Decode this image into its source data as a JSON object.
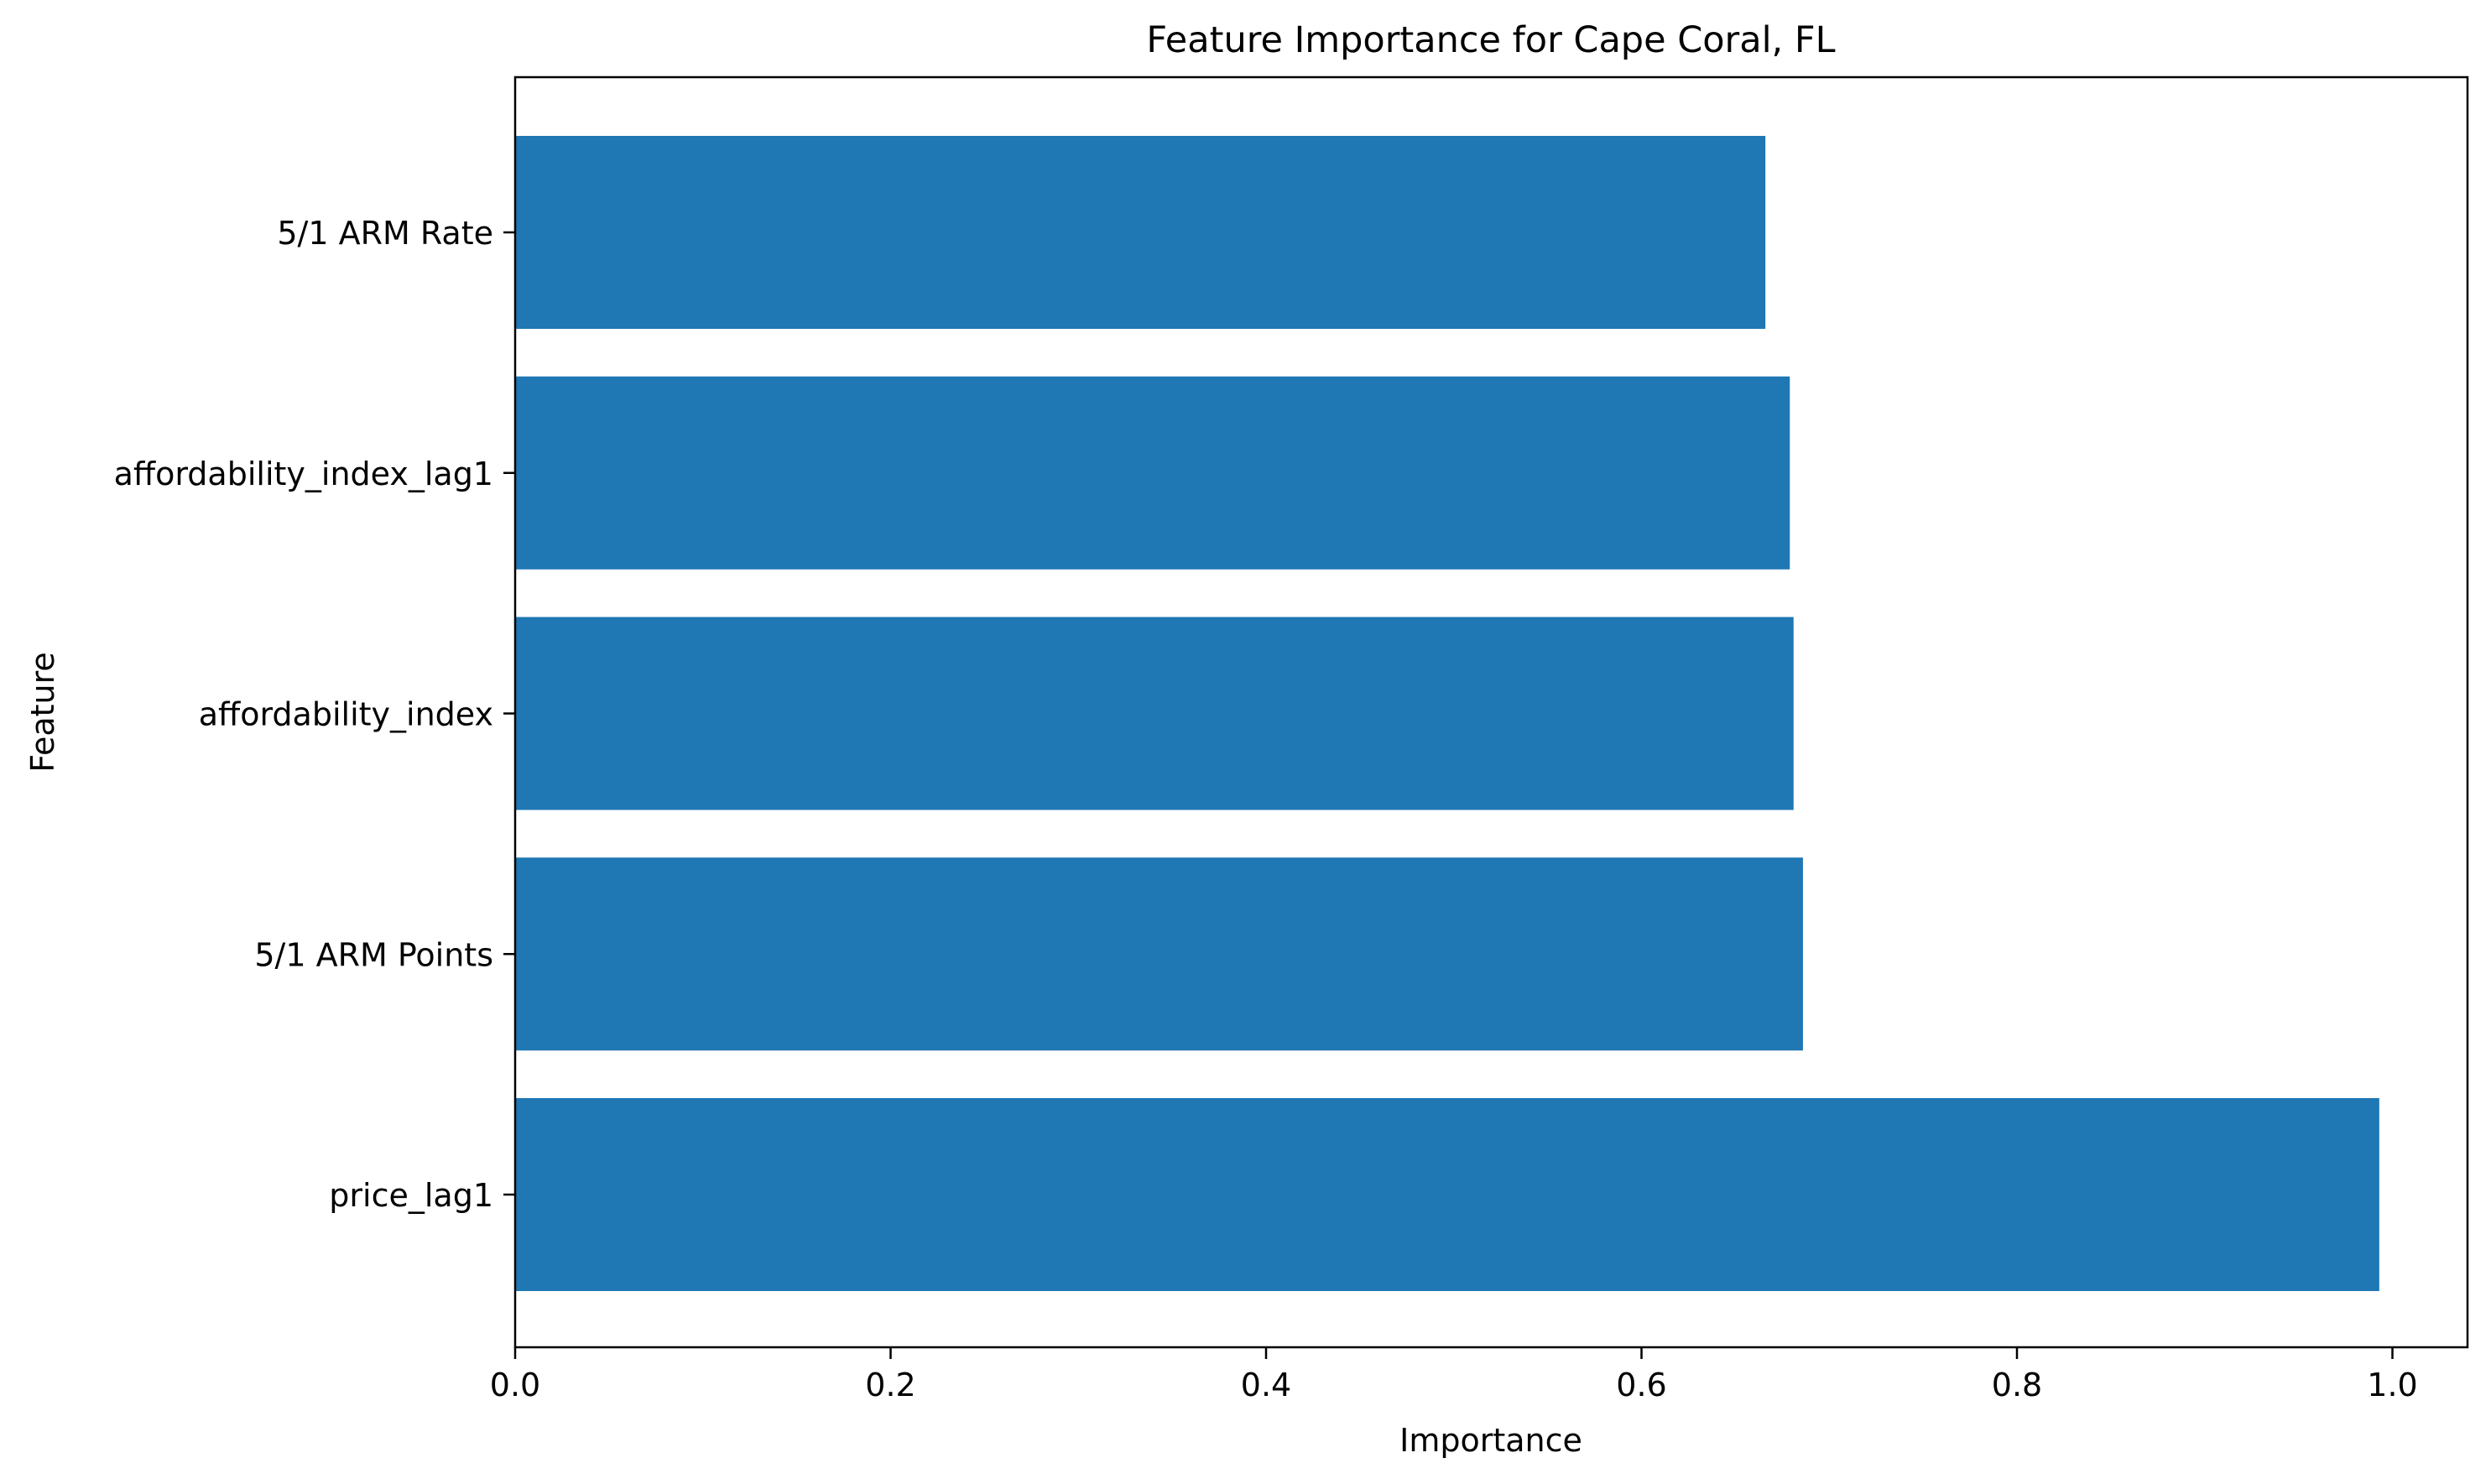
{
  "chart_data": {
    "type": "bar",
    "orientation": "horizontal",
    "title": "Feature Importance for Cape Coral, FL",
    "xlabel": "Importance",
    "ylabel": "Feature",
    "categories": [
      "price_lag1",
      "5/1 ARM Points",
      "affordability_index",
      "affordability_index_lag1",
      "5/1 ARM Rate"
    ],
    "values": [
      0.993,
      0.686,
      0.681,
      0.679,
      0.666
    ],
    "xlim": [
      0.0,
      1.04
    ],
    "xticks": [
      0.0,
      0.2,
      0.4,
      0.6,
      0.8,
      1.0
    ],
    "xtick_labels": [
      "0.0",
      "0.2",
      "0.4",
      "0.6",
      "0.8",
      "1.0"
    ],
    "grid": false,
    "legend": "none",
    "bar_color": "#1f77b4"
  }
}
